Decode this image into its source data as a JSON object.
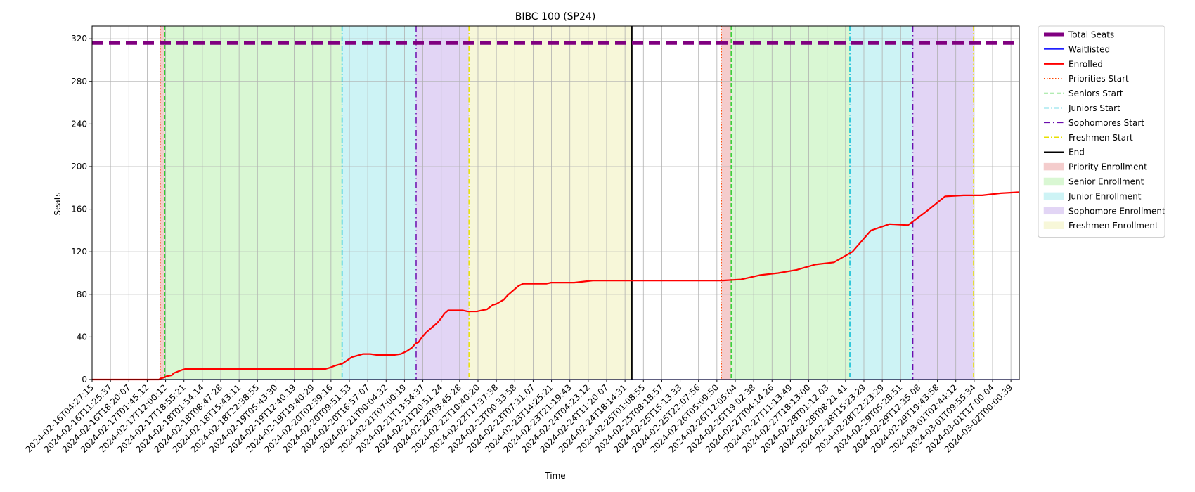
{
  "chart_data": {
    "type": "line",
    "title": "BIBC 100 (SP24)",
    "xlabel": "Time",
    "ylabel": "Seats",
    "ylim": [
      0,
      332
    ],
    "yticks": [
      0,
      40,
      80,
      120,
      160,
      200,
      240,
      280,
      320
    ],
    "grid": true,
    "legend_position": "outside-right",
    "xlim": [
      0,
      1.0
    ],
    "x_tick_labels": [
      "2024-02-16T04:27:15",
      "2024-02-16T11:25:37",
      "2024-02-16T18:20:07",
      "2024-02-17T01:45:12",
      "2024-02-17T12:00:12",
      "2024-02-17T18:55:21",
      "2024-02-18T01:54:14",
      "2024-02-18T08:47:28",
      "2024-02-18T15:43:11",
      "2024-02-18T22:38:55",
      "2024-02-19T05:43:30",
      "2024-02-19T12:40:19",
      "2024-02-19T19:40:29",
      "2024-02-20T02:39:16",
      "2024-02-20T09:51:53",
      "2024-02-20T16:57:07",
      "2024-02-21T00:04:32",
      "2024-02-21T07:00:19",
      "2024-02-21T13:54:37",
      "2024-02-21T20:51:24",
      "2024-02-22T03:45:28",
      "2024-02-22T10:40:20",
      "2024-02-22T17:37:38",
      "2024-02-23T00:33:58",
      "2024-02-23T07:31:07",
      "2024-02-23T14:25:21",
      "2024-02-23T21:19:43",
      "2024-02-24T04:23:12",
      "2024-02-24T11:20:07",
      "2024-02-24T18:14:31",
      "2024-02-25T01:08:55",
      "2024-02-25T08:18:57",
      "2024-02-25T15:13:33",
      "2024-02-25T22:07:56",
      "2024-02-26T05:09:50",
      "2024-02-26T12:05:04",
      "2024-02-26T19:02:38",
      "2024-02-27T04:14:26",
      "2024-02-27T11:13:49",
      "2024-02-27T18:13:00",
      "2024-02-28T01:12:03",
      "2024-02-28T08:21:41",
      "2024-02-28T15:23:29",
      "2024-02-28T22:23:29",
      "2024-02-29T05:28:51",
      "2024-02-29T12:35:08",
      "2024-02-29T19:43:58",
      "2024-03-01T02:44:12",
      "2024-03-01T09:55:34",
      "2024-03-01T17:00:04",
      "2024-03-02T00:00:39"
    ],
    "total_seats": 316,
    "series": [
      {
        "name": "Total Seats",
        "color": "#800080",
        "x": [
          0.0,
          1.0
        ],
        "values": [
          316,
          316
        ]
      },
      {
        "name": "Waitlisted",
        "color": "#0000ff",
        "x": [
          0.0,
          1.0
        ],
        "values": [
          0,
          0
        ]
      },
      {
        "name": "Enrolled",
        "color": "#ff0000",
        "x": [
          0.0,
          0.072,
          0.074,
          0.078,
          0.08,
          0.086,
          0.088,
          0.091,
          0.094,
          0.097,
          0.101,
          0.104,
          0.108,
          0.112,
          0.118,
          0.14,
          0.2,
          0.24,
          0.252,
          0.256,
          0.262,
          0.27,
          0.275,
          0.28,
          0.288,
          0.292,
          0.3,
          0.308,
          0.315,
          0.32,
          0.325,
          0.333,
          0.34,
          0.345,
          0.349,
          0.352,
          0.356,
          0.36,
          0.364,
          0.368,
          0.372,
          0.376,
          0.38,
          0.384,
          0.388,
          0.392,
          0.396,
          0.4,
          0.405,
          0.41,
          0.415,
          0.42,
          0.426,
          0.432,
          0.436,
          0.44,
          0.444,
          0.448,
          0.452,
          0.456,
          0.46,
          0.465,
          0.47,
          0.475,
          0.48,
          0.485,
          0.49,
          0.495,
          0.5,
          0.508,
          0.52,
          0.54,
          0.56,
          0.58,
          0.6,
          0.62,
          0.64,
          0.66,
          0.68,
          0.7,
          0.72,
          0.74,
          0.76,
          0.78,
          0.8,
          0.82,
          0.84,
          0.86,
          0.88,
          0.9,
          0.92,
          0.94,
          0.96,
          0.98,
          1.0
        ],
        "values": [
          0,
          0,
          1,
          2,
          3,
          4,
          6,
          7,
          8,
          9,
          10,
          10,
          10,
          10,
          10,
          10,
          10,
          10,
          10,
          11,
          13,
          15,
          18,
          21,
          23,
          24,
          24,
          23,
          23,
          23,
          23,
          24,
          27,
          30,
          34,
          35,
          40,
          44,
          47,
          50,
          53,
          57,
          62,
          65,
          65,
          65,
          65,
          65,
          64,
          64,
          64,
          65,
          66,
          70,
          71,
          73,
          75,
          79,
          82,
          85,
          88,
          90,
          90,
          90,
          90,
          90,
          90,
          91,
          91,
          91,
          91,
          93,
          93,
          93,
          93,
          93,
          93,
          93,
          93,
          94,
          98,
          100,
          103,
          108,
          110,
          120,
          140,
          146,
          145,
          158,
          172,
          173,
          173,
          175,
          176
        ]
      }
    ],
    "vertical_lines": [
      {
        "name": "Priorities Start",
        "color": "#ff4500",
        "style": "dotted",
        "x": [
          0.0734,
          0.6787
        ]
      },
      {
        "name": "Seniors Start",
        "color": "#32cd32",
        "style": "dashed",
        "x": [
          0.0784,
          0.6893
        ]
      },
      {
        "name": "Juniors Start",
        "color": "#00bcd4",
        "style": "dashdot",
        "x": [
          0.2696,
          0.8173
        ]
      },
      {
        "name": "Sophomores Start",
        "color": "#6a0dad",
        "style": "dashdot-sparse",
        "x": [
          0.3495,
          0.8852
        ]
      },
      {
        "name": "Freshmen Start",
        "color": "#e8e000",
        "style": "dashdot",
        "x": [
          0.4065,
          0.9507
        ]
      },
      {
        "name": "End",
        "color": "#000000",
        "style": "solid",
        "x": [
          0.5822
        ]
      }
    ],
    "spans": [
      {
        "name": "Priority Enrollment",
        "color": "#f4cccc",
        "ranges": [
          [
            0.0734,
            0.0784
          ],
          [
            0.6787,
            0.6893
          ]
        ]
      },
      {
        "name": "Senior Enrollment",
        "color": "#d9f7d3",
        "ranges": [
          [
            0.0784,
            0.2696
          ],
          [
            0.6893,
            0.8173
          ]
        ]
      },
      {
        "name": "Junior Enrollment",
        "color": "#cdf3f5",
        "ranges": [
          [
            0.2696,
            0.3495
          ],
          [
            0.8173,
            0.8852
          ]
        ]
      },
      {
        "name": "Sophomore Enrollment",
        "color": "#e2d5f5",
        "ranges": [
          [
            0.3495,
            0.4065
          ],
          [
            0.8852,
            0.9507
          ]
        ]
      },
      {
        "name": "Freshmen Enrollment",
        "color": "#f7f7d9",
        "ranges": [
          [
            0.4065,
            0.5822
          ],
          [
            0.9507,
            0.9507
          ]
        ]
      }
    ],
    "legend": [
      {
        "label": "Total Seats",
        "kind": "line",
        "color": "#800080",
        "style": "thick"
      },
      {
        "label": "Waitlisted",
        "kind": "line",
        "color": "#0000ff",
        "style": "solid"
      },
      {
        "label": "Enrolled",
        "kind": "line",
        "color": "#ff0000",
        "style": "solid-thick"
      },
      {
        "label": "Priorities Start",
        "kind": "line",
        "color": "#ff4500",
        "style": "dotted"
      },
      {
        "label": "Seniors Start",
        "kind": "line",
        "color": "#32cd32",
        "style": "dashed"
      },
      {
        "label": "Juniors Start",
        "kind": "line",
        "color": "#00bcd4",
        "style": "dashdot"
      },
      {
        "label": "Sophomores Start",
        "kind": "line",
        "color": "#6a0dad",
        "style": "dashdot-sparse"
      },
      {
        "label": "Freshmen Start",
        "kind": "line",
        "color": "#e8e000",
        "style": "dashdot"
      },
      {
        "label": "End",
        "kind": "line",
        "color": "#000000",
        "style": "solid"
      },
      {
        "label": "Priority Enrollment",
        "kind": "patch",
        "color": "#f4cccc"
      },
      {
        "label": "Senior Enrollment",
        "kind": "patch",
        "color": "#d9f7d3"
      },
      {
        "label": "Junior Enrollment",
        "kind": "patch",
        "color": "#cdf3f5"
      },
      {
        "label": "Sophomore Enrollment",
        "kind": "patch",
        "color": "#e2d5f5"
      },
      {
        "label": "Freshmen Enrollment",
        "kind": "patch",
        "color": "#f7f7d9"
      }
    ]
  }
}
